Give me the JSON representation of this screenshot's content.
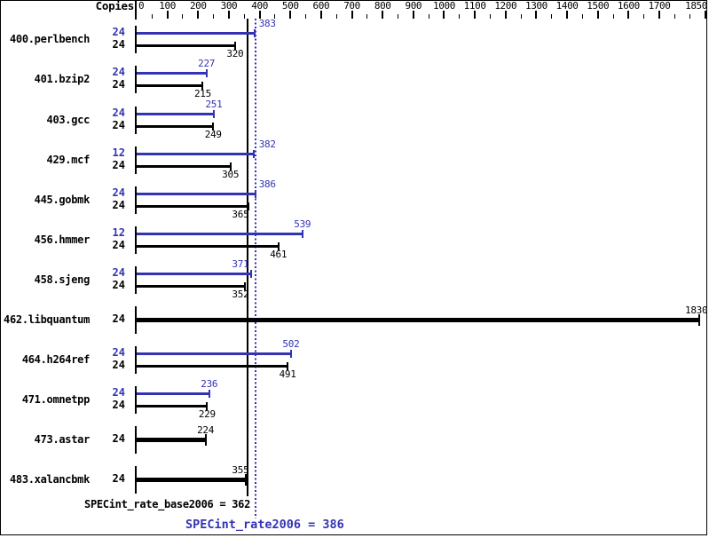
{
  "chart_data": {
    "type": "bar",
    "orientation": "horizontal",
    "copies_header": "Copies",
    "xaxis": {
      "min": 0,
      "max": 1850,
      "major_tick_step": 100,
      "minor_tick_step": 50,
      "tick_labels": [
        0,
        100,
        200,
        300,
        400,
        500,
        600,
        700,
        800,
        900,
        1000,
        1100,
        1200,
        1300,
        1400,
        1500,
        1600,
        1700,
        1850
      ],
      "grid": false
    },
    "series_colors": {
      "peak": "#3333b3",
      "base": "#000000"
    },
    "benchmarks": [
      {
        "name": "400.perlbench",
        "bars": [
          {
            "kind": "peak",
            "copies": 24,
            "value": 383
          },
          {
            "kind": "base",
            "copies": 24,
            "value": 320
          }
        ]
      },
      {
        "name": "401.bzip2",
        "bars": [
          {
            "kind": "peak",
            "copies": 24,
            "value": 227
          },
          {
            "kind": "base",
            "copies": 24,
            "value": 215
          }
        ]
      },
      {
        "name": "403.gcc",
        "bars": [
          {
            "kind": "peak",
            "copies": 24,
            "value": 251
          },
          {
            "kind": "base",
            "copies": 24,
            "value": 249
          }
        ]
      },
      {
        "name": "429.mcf",
        "bars": [
          {
            "kind": "peak",
            "copies": 12,
            "value": 382
          },
          {
            "kind": "base",
            "copies": 24,
            "value": 305
          }
        ]
      },
      {
        "name": "445.gobmk",
        "bars": [
          {
            "kind": "peak",
            "copies": 24,
            "value": 386
          },
          {
            "kind": "base",
            "copies": 24,
            "value": 365
          }
        ]
      },
      {
        "name": "456.hmmer",
        "bars": [
          {
            "kind": "peak",
            "copies": 12,
            "value": 539
          },
          {
            "kind": "base",
            "copies": 24,
            "value": 461
          }
        ]
      },
      {
        "name": "458.sjeng",
        "bars": [
          {
            "kind": "peak",
            "copies": 24,
            "value": 371
          },
          {
            "kind": "base",
            "copies": 24,
            "value": 352
          }
        ]
      },
      {
        "name": "462.libquantum",
        "bars": [
          {
            "kind": "basepeak",
            "copies": 24,
            "value": 1830
          }
        ]
      },
      {
        "name": "464.h264ref",
        "bars": [
          {
            "kind": "peak",
            "copies": 24,
            "value": 502
          },
          {
            "kind": "base",
            "copies": 24,
            "value": 491
          }
        ]
      },
      {
        "name": "471.omnetpp",
        "bars": [
          {
            "kind": "peak",
            "copies": 24,
            "value": 236
          },
          {
            "kind": "base",
            "copies": 24,
            "value": 229
          }
        ]
      },
      {
        "name": "473.astar",
        "bars": [
          {
            "kind": "basepeak",
            "copies": 24,
            "value": 224
          }
        ]
      },
      {
        "name": "483.xalancbmk",
        "bars": [
          {
            "kind": "basepeak",
            "copies": 24,
            "value": 355
          }
        ]
      }
    ],
    "reference_lines": [
      {
        "metric": "SPECint_rate_base2006",
        "value": 362,
        "style": "solid",
        "color": "#000000",
        "label": "SPECint_rate_base2006 = 362"
      },
      {
        "metric": "SPECint_rate2006",
        "value": 386,
        "style": "dotted",
        "color": "#3333b3",
        "label": "SPECint_rate2006 = 386"
      }
    ]
  }
}
